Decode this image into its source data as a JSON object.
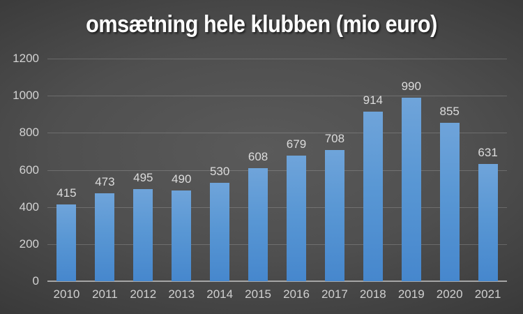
{
  "title": "omsætning hele klubben (mio euro)",
  "chart_data": {
    "type": "bar",
    "title": "omsætning hele klubben (mio euro)",
    "categories": [
      "2010",
      "2011",
      "2012",
      "2013",
      "2014",
      "2015",
      "2016",
      "2017",
      "2018",
      "2019",
      "2020",
      "2021"
    ],
    "values": [
      415,
      473,
      495,
      490,
      530,
      608,
      679,
      708,
      914,
      990,
      855,
      631
    ],
    "xlabel": "",
    "ylabel": "",
    "ylim": [
      0,
      1200
    ],
    "yticks": [
      0,
      200,
      400,
      600,
      800,
      1000,
      1200
    ],
    "grid": true,
    "legend": false,
    "data_labels": true
  },
  "colors": {
    "bar_top": "#6fa4da",
    "bar_bottom": "#4687cd",
    "background_center": "#5a5a5a",
    "background_edge": "#262626",
    "gridline": "rgba(255,255,255,0.18)",
    "axis_line": "#a6a6a6",
    "tick_label": "#d2d2d2",
    "data_label": "#dcdcdc",
    "title_text": "#ffffff"
  }
}
